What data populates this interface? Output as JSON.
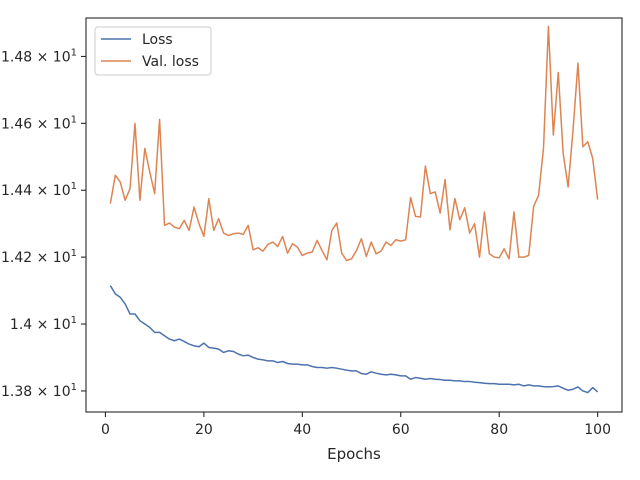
{
  "chart_data": {
    "type": "line",
    "title": "",
    "xlabel": "Epochs",
    "ylabel": "",
    "xlim": [
      -3.95,
      104.95
    ],
    "ylim": [
      13.737,
      14.915
    ],
    "grid": false,
    "legend": {
      "placement": "top-left",
      "entries": [
        "Loss",
        "Val. loss"
      ]
    },
    "x_ticks": [
      {
        "value": 0,
        "label": "0"
      },
      {
        "value": 20,
        "label": "20"
      },
      {
        "value": 40,
        "label": "40"
      },
      {
        "value": 60,
        "label": "60"
      },
      {
        "value": 80,
        "label": "80"
      },
      {
        "value": 100,
        "label": "100"
      }
    ],
    "y_ticks": [
      {
        "value": 13.8,
        "mantissa": "1.38",
        "exponent": "1"
      },
      {
        "value": 14.0,
        "mantissa": "1.4",
        "exponent": "1"
      },
      {
        "value": 14.2,
        "mantissa": "1.42",
        "exponent": "1"
      },
      {
        "value": 14.4,
        "mantissa": "1.44",
        "exponent": "1"
      },
      {
        "value": 14.6,
        "mantissa": "1.46",
        "exponent": "1"
      },
      {
        "value": 14.8,
        "mantissa": "1.48",
        "exponent": "1"
      }
    ],
    "x": [
      1,
      2,
      3,
      4,
      5,
      6,
      7,
      8,
      9,
      10,
      11,
      12,
      13,
      14,
      15,
      16,
      17,
      18,
      19,
      20,
      21,
      22,
      23,
      24,
      25,
      26,
      27,
      28,
      29,
      30,
      31,
      32,
      33,
      34,
      35,
      36,
      37,
      38,
      39,
      40,
      41,
      42,
      43,
      44,
      45,
      46,
      47,
      48,
      49,
      50,
      51,
      52,
      53,
      54,
      55,
      56,
      57,
      58,
      59,
      60,
      61,
      62,
      63,
      64,
      65,
      66,
      67,
      68,
      69,
      70,
      71,
      72,
      73,
      74,
      75,
      76,
      77,
      78,
      79,
      80,
      81,
      82,
      83,
      84,
      85,
      86,
      87,
      88,
      89,
      90,
      91,
      92,
      93,
      94,
      95,
      96,
      97,
      98,
      99,
      100
    ],
    "series": [
      {
        "name": "Loss",
        "color": "#4c72b0",
        "values": [
          14.115,
          14.09,
          14.08,
          14.06,
          14.03,
          14.03,
          14.01,
          14.0,
          13.99,
          13.975,
          13.975,
          13.965,
          13.955,
          13.95,
          13.955,
          13.948,
          13.94,
          13.935,
          13.932,
          13.943,
          13.93,
          13.928,
          13.925,
          13.915,
          13.92,
          13.918,
          13.91,
          13.905,
          13.907,
          13.9,
          13.895,
          13.893,
          13.89,
          13.89,
          13.885,
          13.888,
          13.882,
          13.88,
          13.88,
          13.878,
          13.878,
          13.873,
          13.87,
          13.87,
          13.868,
          13.87,
          13.868,
          13.865,
          13.862,
          13.86,
          13.86,
          13.852,
          13.85,
          13.857,
          13.853,
          13.85,
          13.848,
          13.85,
          13.848,
          13.845,
          13.845,
          13.835,
          13.84,
          13.838,
          13.835,
          13.837,
          13.835,
          13.834,
          13.832,
          13.832,
          13.83,
          13.83,
          13.828,
          13.828,
          13.826,
          13.825,
          13.823,
          13.822,
          13.822,
          13.82,
          13.82,
          13.82,
          13.818,
          13.82,
          13.815,
          13.818,
          13.815,
          13.815,
          13.813,
          13.812,
          13.813,
          13.815,
          13.808,
          13.802,
          13.805,
          13.812,
          13.8,
          13.795,
          13.81,
          13.797
        ]
      },
      {
        "name": "Val. loss",
        "color": "#dd8452",
        "values": [
          14.36,
          14.445,
          14.425,
          14.37,
          14.405,
          14.6,
          14.37,
          14.525,
          14.455,
          14.39,
          14.612,
          14.295,
          14.302,
          14.29,
          14.285,
          14.31,
          14.28,
          14.35,
          14.3,
          14.262,
          14.375,
          14.28,
          14.315,
          14.272,
          14.265,
          14.27,
          14.272,
          14.268,
          14.295,
          14.222,
          14.228,
          14.218,
          14.238,
          14.245,
          14.232,
          14.262,
          14.212,
          14.24,
          14.23,
          14.205,
          14.212,
          14.215,
          14.25,
          14.22,
          14.192,
          14.28,
          14.302,
          14.212,
          14.19,
          14.195,
          14.22,
          14.255,
          14.202,
          14.245,
          14.21,
          14.218,
          14.245,
          14.235,
          14.252,
          14.248,
          14.252,
          14.378,
          14.322,
          14.32,
          14.472,
          14.39,
          14.395,
          14.332,
          14.432,
          14.282,
          14.375,
          14.312,
          14.348,
          14.272,
          14.3,
          14.2,
          14.335,
          14.21,
          14.2,
          14.198,
          14.225,
          14.195,
          14.335,
          14.2,
          14.2,
          14.205,
          14.352,
          14.385,
          14.525,
          14.89,
          14.565,
          14.752,
          14.51,
          14.41,
          14.58,
          14.78,
          14.53,
          14.545,
          14.495,
          14.372
        ]
      }
    ]
  }
}
